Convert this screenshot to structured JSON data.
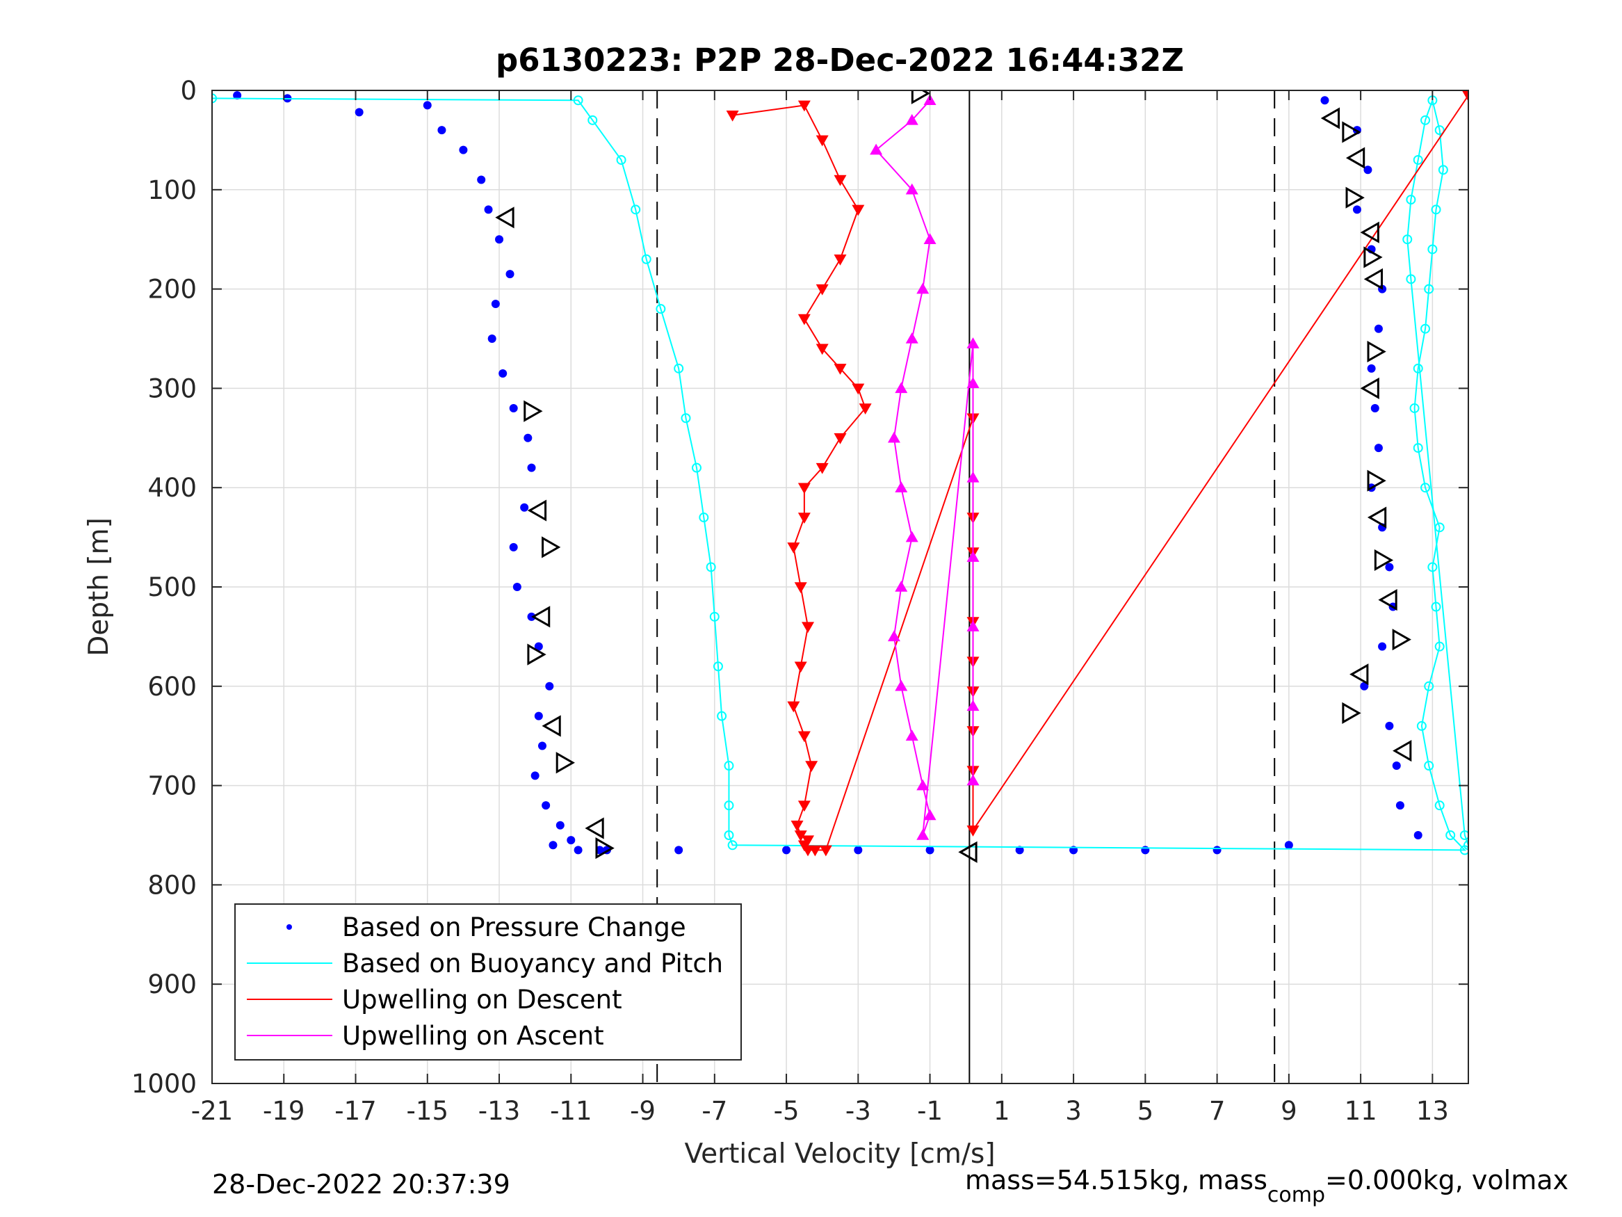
{
  "chart_data": {
    "type": "scatter",
    "title": "p6130223: P2P 28-Dec-2022 16:44:32Z",
    "xlabel": "Vertical Velocity [cm/s]",
    "ylabel": "Depth [m]",
    "xlim": [
      -21,
      14
    ],
    "ylim": [
      0,
      1000
    ],
    "y_reversed": true,
    "grid": true,
    "legend_position": "bottom-left",
    "x_ticks": [
      "-21",
      "-19",
      "-17",
      "-15",
      "-13",
      "-11",
      "-9",
      "-7",
      "-5",
      "-3",
      "-1",
      "1",
      "3",
      "5",
      "7",
      "9",
      "11",
      "13"
    ],
    "y_ticks": [
      "0",
      "100",
      "200",
      "300",
      "400",
      "500",
      "600",
      "700",
      "800",
      "900",
      "1000"
    ],
    "vlines": [
      {
        "x": -8.6,
        "style": "dashed"
      },
      {
        "x": 8.6,
        "style": "dashed"
      },
      {
        "x": 0.1,
        "style": "solid"
      }
    ],
    "series": [
      {
        "name": "Based on Pressure Change",
        "kind": "dots",
        "color": "#0000ff",
        "x": [
          -20.3,
          -18.9,
          -16.9,
          -15.0,
          -14.6,
          -14.0,
          -13.5,
          -13.3,
          -13.0,
          -12.7,
          -13.1,
          -13.2,
          -12.9,
          -12.6,
          -12.2,
          -12.1,
          -12.3,
          -12.6,
          -12.5,
          -12.1,
          -11.9,
          -11.6,
          -11.9,
          -11.8,
          -12.0,
          -11.7,
          -11.3,
          -11.0,
          -11.5,
          -10.8,
          -10.2,
          -10.0,
          -8.0,
          -5.0,
          -3.0,
          -1.0,
          1.5,
          3.0,
          5.0,
          7.0,
          9.0,
          10.0,
          10.9,
          11.2,
          10.9,
          11.3,
          11.6,
          11.5,
          11.3,
          11.4,
          11.5,
          11.3,
          11.6,
          11.8,
          11.9,
          11.6,
          11.1,
          11.8,
          12.0,
          12.1,
          12.6
        ],
        "y": [
          5,
          8,
          22,
          15,
          40,
          60,
          90,
          120,
          150,
          185,
          215,
          250,
          285,
          320,
          350,
          380,
          420,
          460,
          500,
          530,
          560,
          600,
          630,
          660,
          690,
          720,
          740,
          755,
          760,
          765,
          765,
          765,
          765,
          765,
          765,
          765,
          765,
          765,
          765,
          765,
          760,
          10,
          40,
          80,
          120,
          160,
          200,
          240,
          280,
          320,
          360,
          400,
          440,
          480,
          520,
          560,
          600,
          640,
          680,
          720,
          750
        ]
      },
      {
        "name": "Based on Buoyancy and Pitch",
        "kind": "line+circles",
        "color": "#00ffff",
        "x": [
          -21.0,
          -10.8,
          -10.4,
          -9.6,
          -9.2,
          -8.9,
          -8.5,
          -8.0,
          -7.8,
          -7.5,
          -7.3,
          -7.1,
          -7.0,
          -6.9,
          -6.8,
          -6.6,
          -6.6,
          -6.6,
          -6.5,
          13.9,
          13.5,
          13.2,
          12.9,
          12.7,
          12.9,
          13.2,
          13.1,
          13.0,
          13.2,
          12.8,
          12.6,
          12.5,
          12.6,
          12.8,
          12.9,
          13.0,
          13.1,
          13.3,
          13.2,
          13.0,
          12.8,
          12.6,
          12.4,
          12.3,
          12.4,
          13.9,
          14.0
        ],
        "y": [
          8,
          10,
          30,
          70,
          120,
          170,
          220,
          280,
          330,
          380,
          430,
          480,
          530,
          580,
          630,
          680,
          720,
          750,
          760,
          765,
          750,
          720,
          680,
          640,
          600,
          560,
          520,
          480,
          440,
          400,
          360,
          320,
          280,
          240,
          200,
          160,
          120,
          80,
          40,
          10,
          30,
          70,
          110,
          150,
          190,
          750,
          760
        ]
      },
      {
        "name": "Upwelling on Descent",
        "kind": "triangles-down",
        "color": "#ff0000",
        "x": [
          -6.5,
          -4.5,
          -4.0,
          -3.5,
          -3.0,
          -3.5,
          -4.0,
          -4.5,
          -4.0,
          -3.5,
          -3.0,
          -2.8,
          -3.5,
          -4.0,
          -4.5,
          -4.5,
          -4.8,
          -4.6,
          -4.4,
          -4.6,
          -4.8,
          -4.5,
          -4.3,
          -4.5,
          -4.7,
          -4.6,
          -4.4,
          -4.5,
          -4.4,
          -4.2,
          -3.9,
          0.2,
          0.2,
          0.2,
          0.2,
          0.2,
          0.2,
          0.2,
          0.2,
          0.2,
          14.0
        ],
        "y": [
          25,
          15,
          50,
          90,
          120,
          170,
          200,
          230,
          260,
          280,
          300,
          320,
          350,
          380,
          400,
          430,
          460,
          500,
          540,
          580,
          620,
          650,
          680,
          720,
          740,
          750,
          755,
          760,
          765,
          765,
          765,
          330,
          430,
          465,
          535,
          575,
          605,
          645,
          685,
          745,
          5
        ]
      },
      {
        "name": "Upwelling on Ascent",
        "kind": "triangles-up",
        "color": "#ff00ff",
        "x": [
          -1.0,
          -1.5,
          -2.5,
          -1.5,
          -1.0,
          -1.2,
          -1.5,
          -1.8,
          -2.0,
          -1.8,
          -1.5,
          -1.8,
          -2.0,
          -1.8,
          -1.5,
          -1.2,
          -1.0,
          -1.2,
          0.2,
          0.2,
          0.2,
          0.2,
          0.2,
          0.2,
          0.2
        ],
        "y": [
          10,
          30,
          60,
          100,
          150,
          200,
          250,
          300,
          350,
          400,
          450,
          500,
          550,
          600,
          650,
          700,
          730,
          750,
          255,
          295,
          390,
          470,
          540,
          620,
          695
        ]
      },
      {
        "name": "",
        "kind": "hollow-triangle-markers",
        "color": "#000000",
        "x": [
          -12.8,
          -12.1,
          -11.9,
          -11.6,
          -11.8,
          -12.0,
          -11.5,
          -11.2,
          -10.3,
          -10.1,
          0.1,
          -1.3,
          10.2,
          10.7,
          10.9,
          10.8,
          11.3,
          11.3,
          11.4,
          11.4,
          11.3,
          11.4,
          11.5,
          11.6,
          11.8,
          12.1,
          11.0,
          10.7,
          12.2
        ],
        "y": [
          128,
          323,
          423,
          460,
          530,
          568,
          640,
          677,
          743,
          763,
          767,
          3,
          28,
          42,
          68,
          108,
          143,
          168,
          190,
          263,
          300,
          393,
          430,
          473,
          513,
          553,
          588,
          627,
          665
        ]
      }
    ]
  },
  "footer": {
    "timestamp": "28-Dec-2022 20:37:39",
    "mass_text_pre": "mass=54.515kg, mass",
    "mass_subscript": "comp",
    "mass_text_post": "=0.000kg, volmax"
  }
}
